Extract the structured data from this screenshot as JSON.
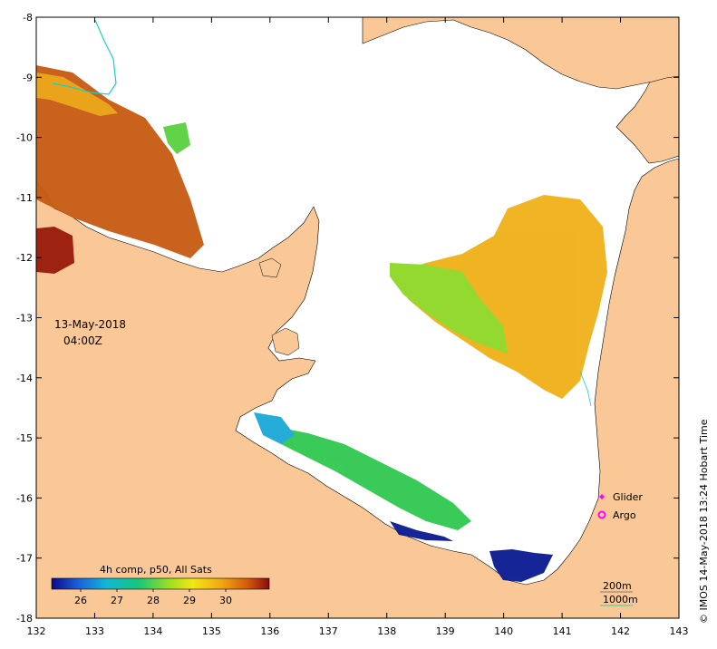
{
  "map": {
    "datetime_line1": "13-May-2018",
    "datetime_line2": "04:00Z",
    "colorbar_title": "4h comp, p50, All Sats",
    "colorbar_ticks": [
      "26",
      "27",
      "28",
      "29",
      "30"
    ],
    "colorbar_range": [
      25.2,
      31.2
    ],
    "legend": {
      "glider_label": "Glider",
      "argo_label": "Argo",
      "glider_color": "#ff00ff",
      "argo_color": "#ff00ff"
    },
    "depth_legend": {
      "line1": "200m",
      "line2": "1000m",
      "line1_color": "#7a7a7a",
      "line2_color": "#44cc99"
    },
    "credit": "© IMOS 14-May-2018 13:24 Hobart Time",
    "x_ticks": [
      "132",
      "133",
      "134",
      "135",
      "136",
      "137",
      "138",
      "139",
      "140",
      "141",
      "142",
      "143"
    ],
    "y_ticks": [
      "-8",
      "-9",
      "-10",
      "-11",
      "-12",
      "-13",
      "-14",
      "-15",
      "-16",
      "-17",
      "-18"
    ],
    "lon_range": [
      132,
      143
    ],
    "lat_range": [
      -18,
      -8
    ],
    "land_color": "#f9c896",
    "sea_color": "#ffffff"
  }
}
